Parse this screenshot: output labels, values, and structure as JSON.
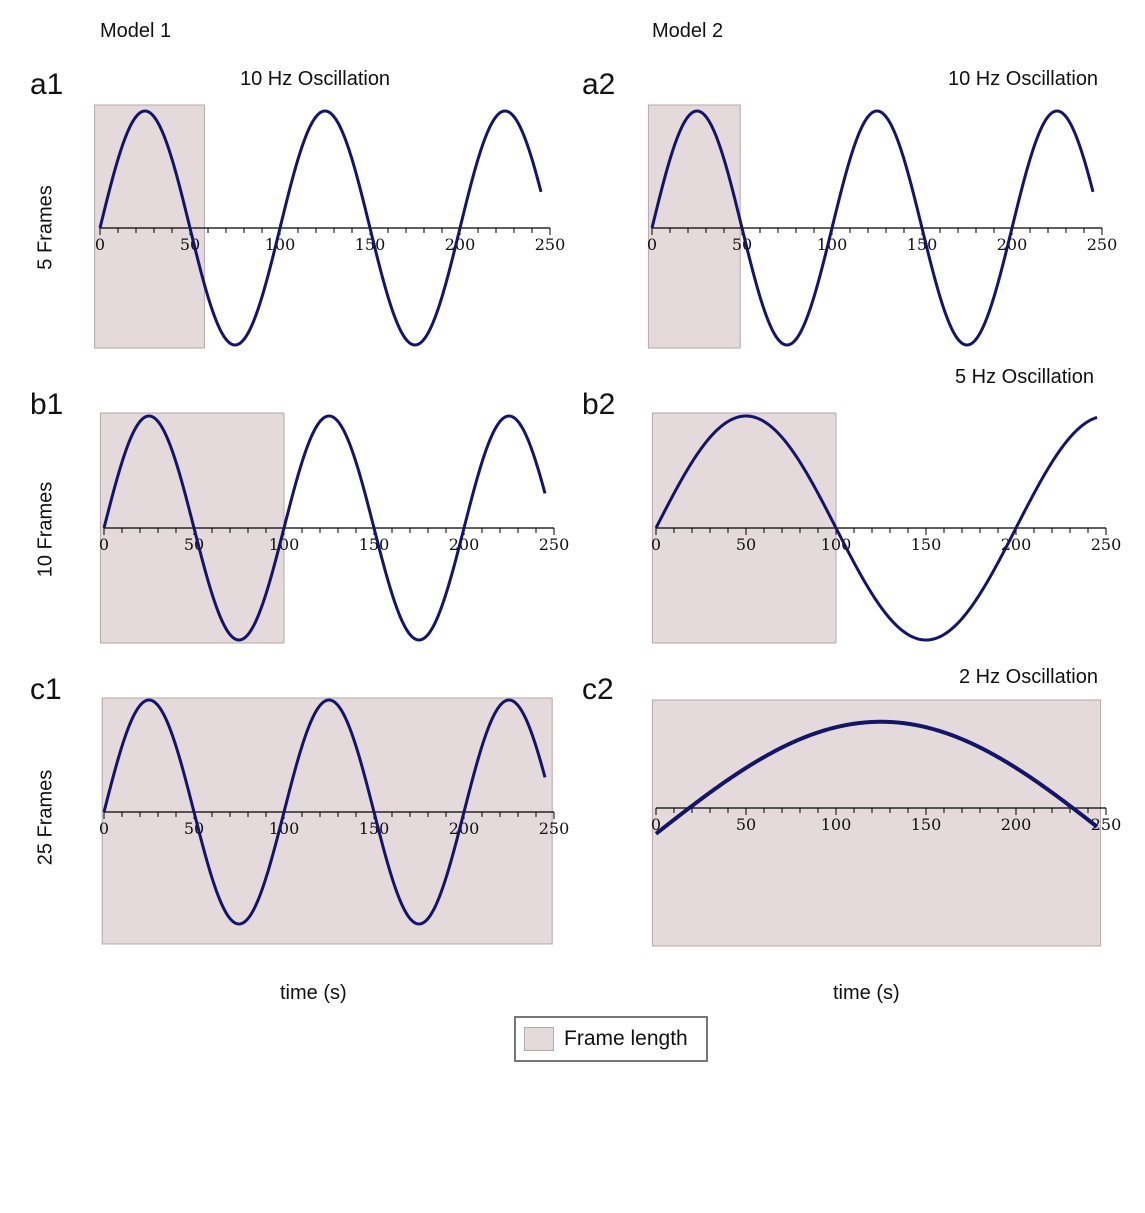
{
  "models": [
    "Model 1",
    "Model 2"
  ],
  "row_labels": [
    "5 Frames",
    "10 Frames",
    "25 Frames"
  ],
  "xlabel": "time (s)",
  "legend": {
    "label": "Frame length",
    "swatch_color": "#e4d9db"
  },
  "colors": {
    "line": "#14146a",
    "frame": "#e4d9db",
    "frame_border": "#b5a8aa",
    "axis": "#000000"
  },
  "chart_data": [
    {
      "id": "a1",
      "panel_label": "a1",
      "title": "10 Hz Oscillation",
      "type": "line",
      "function": "sine",
      "period": 100,
      "x_range": [
        0,
        245
      ],
      "xlim": [
        0,
        250
      ],
      "xticks": [
        0,
        50,
        100,
        150,
        200,
        250
      ],
      "frame_window": [
        -3,
        58
      ]
    },
    {
      "id": "a2",
      "panel_label": "a2",
      "title": "10 Hz Oscillation",
      "type": "line",
      "function": "sine",
      "period": 100,
      "x_range": [
        0,
        245
      ],
      "xlim": [
        0,
        250
      ],
      "xticks": [
        0,
        50,
        100,
        150,
        200,
        250
      ],
      "frame_window": [
        -2,
        49
      ]
    },
    {
      "id": "b1",
      "panel_label": "b1",
      "title": "",
      "type": "line",
      "function": "sine",
      "period": 100,
      "x_range": [
        0,
        245
      ],
      "xlim": [
        0,
        250
      ],
      "xticks": [
        0,
        50,
        100,
        150,
        200,
        250
      ],
      "frame_window": [
        -2,
        100
      ]
    },
    {
      "id": "b2",
      "panel_label": "b2",
      "title": "5 Hz Oscillation",
      "type": "line",
      "function": "sine",
      "period": 200,
      "x_range": [
        0,
        245
      ],
      "xlim": [
        0,
        250
      ],
      "xticks": [
        0,
        50,
        100,
        150,
        200,
        250
      ],
      "frame_window": [
        -2,
        100
      ]
    },
    {
      "id": "c1",
      "panel_label": "c1",
      "title": "",
      "type": "line",
      "function": "sine",
      "period": 100,
      "x_range": [
        0,
        245
      ],
      "xlim": [
        0,
        250
      ],
      "xticks": [
        0,
        50,
        100,
        150,
        200,
        250
      ],
      "frame_window": [
        -1,
        249
      ]
    },
    {
      "id": "c2",
      "panel_label": "c2",
      "title": "2 Hz Oscillation",
      "type": "line",
      "function": "sine",
      "period": 500,
      "x_range": [
        0,
        245
      ],
      "xlim": [
        0,
        250
      ],
      "xticks": [
        0,
        50,
        100,
        150,
        200,
        250
      ],
      "frame_window": [
        -2,
        247
      ],
      "y_offset": -0.23
    }
  ]
}
